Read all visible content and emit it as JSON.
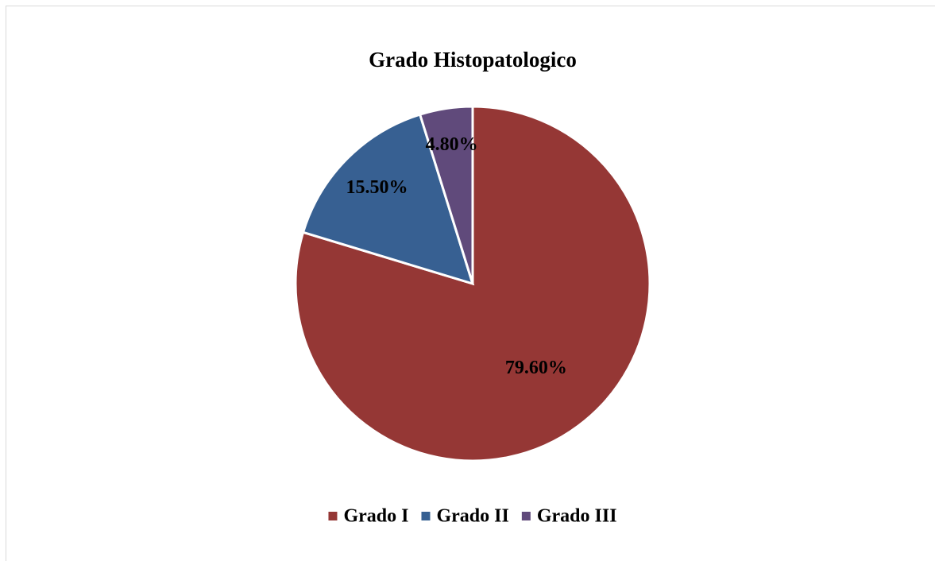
{
  "chart_data": {
    "type": "pie",
    "title": "Grado Histopatologico",
    "categories": [
      "Grado I",
      "Grado II",
      "Grado III"
    ],
    "values": [
      79.6,
      15.5,
      4.8
    ],
    "value_labels": [
      "79.60%",
      "15.50%",
      "4.80%"
    ],
    "colors": [
      "#953735",
      "#376092",
      "#604a7b"
    ],
    "legend": "bottom"
  }
}
